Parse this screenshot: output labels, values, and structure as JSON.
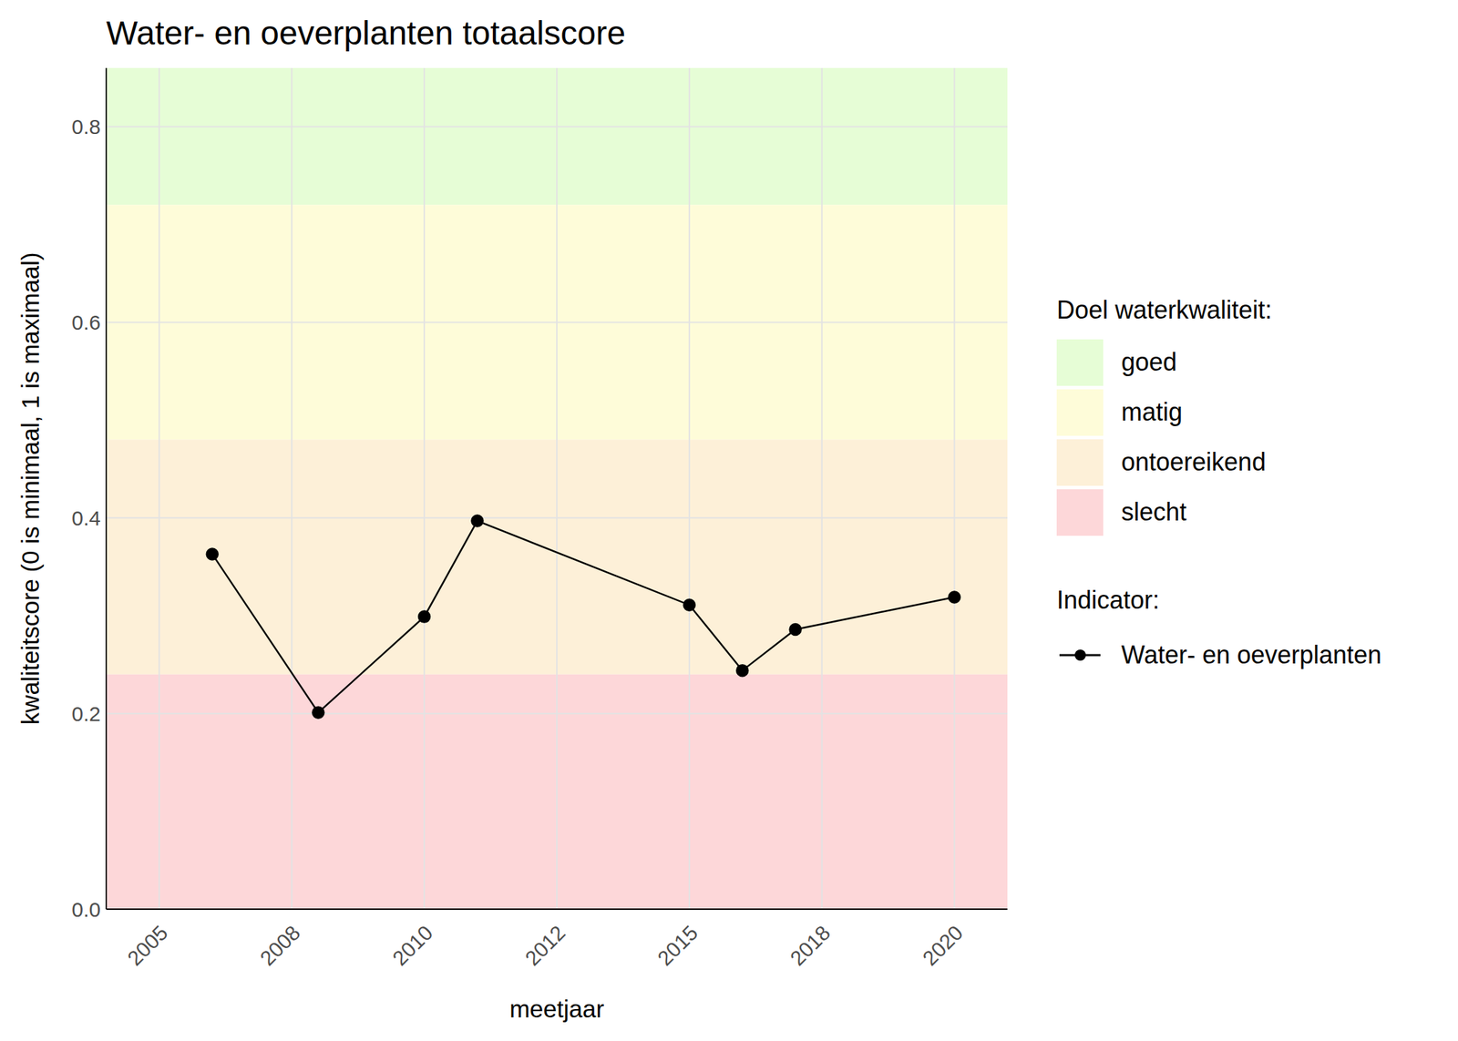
{
  "chart_data": {
    "type": "line",
    "title": "Water- en oeverplanten totaalscore",
    "x_label": "meetjaar",
    "y_label": "kwaliteitscore (0 is minimaal, 1 is maximaal)",
    "x": [
      2006,
      2008,
      2010,
      2011,
      2015,
      2016,
      2017,
      2020
    ],
    "series": [
      {
        "name": "Water- en oeverplanten",
        "color": "#000000",
        "marker": "circle",
        "line_style": "solid",
        "values": [
          0.363,
          0.201,
          0.299,
          0.397,
          0.311,
          0.244,
          0.286,
          0.319
        ]
      }
    ],
    "xlim": [
      2004,
      2021
    ],
    "xticks": [
      {
        "value": 2005,
        "label": "2005"
      },
      {
        "value": 2007.5,
        "label": "2008"
      },
      {
        "value": 2010,
        "label": "2010"
      },
      {
        "value": 2012.5,
        "label": "2012"
      },
      {
        "value": 2015,
        "label": "2015"
      },
      {
        "value": 2017.5,
        "label": "2018"
      },
      {
        "value": 2020,
        "label": "2020"
      }
    ],
    "ylim": [
      0,
      0.86
    ],
    "yticks": [
      {
        "value": 0,
        "label": "0.0"
      },
      0.2,
      0.4,
      0.6,
      0.8
    ],
    "grid": true,
    "bands_title": "Doel waterkwaliteit:",
    "bands": [
      {
        "name": "goed",
        "color": "#e6fdd6",
        "from": 0.72,
        "to": 0.86
      },
      {
        "name": "matig",
        "color": "#fefcd9",
        "from": 0.48,
        "to": 0.72
      },
      {
        "name": "ontoereikend",
        "color": "#fdf0d8",
        "from": 0.24,
        "to": 0.48
      },
      {
        "name": "slecht",
        "color": "#fdd7d9",
        "from": 0,
        "to": 0.24
      }
    ],
    "series_title": "Indicator:"
  }
}
